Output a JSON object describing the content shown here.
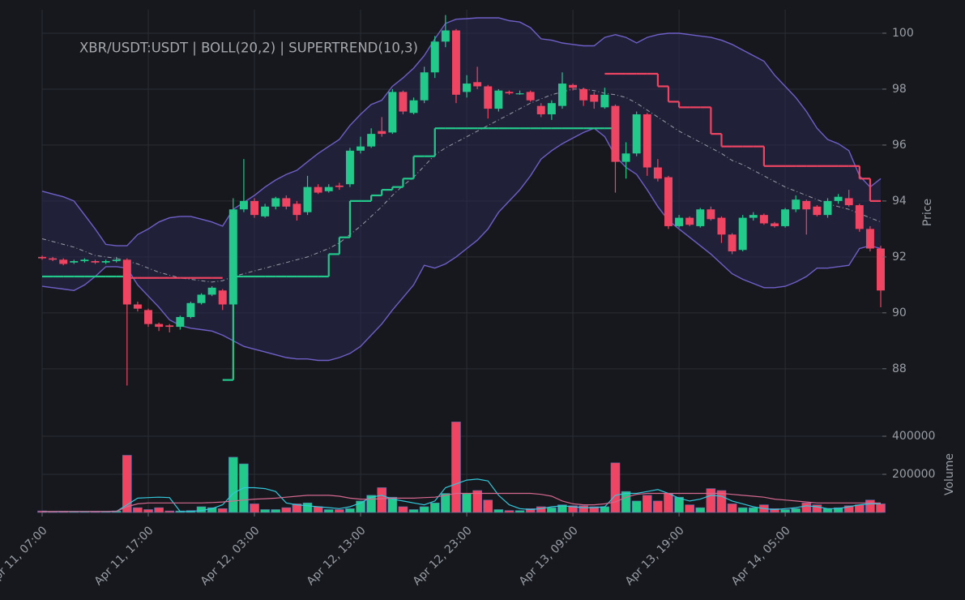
{
  "chart_data": {
    "type": "candlestick",
    "title": "XBR/USDT:USDT | BOLL(20,2) | SUPERTREND(10,3)",
    "ylabel": "Price",
    "ylim": [
      86.4,
      100.84
    ],
    "yticks": [
      88,
      90,
      92,
      94,
      96,
      98,
      100
    ],
    "xlim": [
      0,
      79
    ],
    "xticks": [
      {
        "value": 0,
        "label": "Apr 11, 07:00"
      },
      {
        "value": 10,
        "label": "Apr 11, 17:00"
      },
      {
        "value": 20,
        "label": "Apr 12, 03:00"
      },
      {
        "value": 30,
        "label": "Apr 12, 13:00"
      },
      {
        "value": 40,
        "label": "Apr 12, 23:00"
      },
      {
        "value": 50,
        "label": "Apr 13, 09:00"
      },
      {
        "value": 60,
        "label": "Apr 13, 19:00"
      },
      {
        "value": 70,
        "label": "Apr 14, 05:00"
      }
    ],
    "grid": true,
    "up_color": "#22c98b",
    "down_color": "#ef4562",
    "open": [
      92.0,
      91.95,
      91.9,
      91.8,
      91.85,
      91.85,
      91.8,
      91.85,
      91.9,
      90.3,
      90.1,
      89.6,
      89.55,
      89.5,
      89.85,
      90.35,
      90.65,
      90.8,
      90.3,
      93.7,
      94.0,
      93.45,
      93.8,
      94.1,
      93.9,
      93.6,
      94.5,
      94.35,
      94.55,
      94.6,
      95.8,
      95.95,
      96.5,
      96.45,
      97.9,
      97.15,
      97.6,
      98.6,
      99.7,
      100.1,
      97.9,
      98.25,
      98.1,
      97.3,
      97.9,
      97.85,
      97.9,
      97.4,
      97.1,
      97.4,
      98.15,
      98.0,
      97.8,
      97.35,
      97.4,
      95.4,
      95.7,
      97.1,
      95.2,
      94.85,
      93.1,
      93.4,
      93.1,
      93.7,
      93.4,
      92.8,
      92.25,
      93.4,
      93.5,
      93.2,
      93.1,
      93.7,
      94.0,
      93.8,
      93.5,
      94.0,
      94.1,
      93.85,
      93.0,
      92.3
    ],
    "high": [
      92.05,
      92.0,
      91.95,
      91.9,
      91.95,
      91.9,
      91.9,
      92.0,
      91.95,
      90.4,
      90.15,
      89.65,
      89.6,
      89.9,
      90.4,
      90.7,
      90.95,
      90.85,
      94.1,
      95.5,
      94.1,
      93.9,
      94.15,
      94.2,
      94.0,
      94.9,
      94.6,
      94.6,
      94.65,
      95.9,
      96.3,
      96.6,
      97.0,
      98.0,
      97.95,
      97.7,
      98.8,
      99.9,
      100.65,
      100.15,
      98.5,
      98.8,
      98.15,
      98.0,
      97.95,
      97.95,
      97.95,
      97.5,
      97.6,
      98.6,
      98.2,
      98.05,
      97.9,
      98.05,
      97.45,
      96.1,
      97.2,
      97.15,
      95.5,
      94.9,
      93.5,
      93.45,
      93.75,
      93.8,
      93.45,
      92.85,
      93.5,
      93.6,
      93.55,
      93.25,
      93.75,
      94.2,
      94.05,
      93.85,
      94.1,
      94.25,
      94.4,
      93.9,
      93.1,
      92.4
    ],
    "low": [
      91.9,
      91.85,
      91.7,
      91.75,
      91.8,
      91.75,
      91.75,
      91.8,
      87.4,
      90.05,
      89.5,
      89.35,
      89.3,
      89.4,
      89.8,
      90.3,
      90.6,
      90.1,
      90.3,
      93.6,
      93.4,
      93.4,
      93.7,
      93.7,
      93.3,
      93.5,
      94.25,
      94.3,
      94.4,
      94.5,
      95.7,
      95.9,
      96.3,
      96.4,
      97.1,
      97.1,
      97.5,
      98.4,
      99.5,
      97.5,
      97.7,
      98.0,
      96.95,
      97.2,
      97.8,
      97.8,
      97.55,
      97.0,
      96.9,
      97.3,
      97.95,
      97.4,
      97.3,
      97.3,
      94.3,
      94.8,
      95.6,
      94.9,
      94.7,
      93.0,
      93.05,
      93.1,
      93.05,
      93.3,
      92.5,
      92.1,
      92.2,
      93.3,
      93.15,
      93.05,
      93.05,
      93.6,
      92.8,
      93.45,
      93.4,
      93.9,
      93.8,
      92.9,
      92.2,
      90.2
    ],
    "close": [
      91.95,
      91.9,
      91.75,
      91.85,
      91.9,
      91.8,
      91.85,
      91.9,
      90.3,
      90.15,
      89.6,
      89.5,
      89.5,
      89.85,
      90.35,
      90.65,
      90.9,
      90.3,
      93.7,
      94.0,
      93.5,
      93.8,
      94.1,
      93.8,
      93.5,
      94.5,
      94.3,
      94.5,
      94.5,
      95.8,
      95.95,
      96.4,
      96.4,
      97.9,
      97.2,
      97.6,
      98.6,
      99.7,
      100.1,
      97.8,
      98.2,
      98.1,
      97.3,
      97.95,
      97.85,
      97.85,
      97.6,
      97.1,
      97.5,
      98.2,
      98.05,
      97.6,
      97.55,
      97.8,
      95.4,
      95.7,
      97.1,
      95.2,
      94.8,
      93.1,
      93.4,
      93.15,
      93.7,
      93.35,
      92.8,
      92.2,
      93.4,
      93.5,
      93.2,
      93.1,
      93.7,
      94.05,
      93.7,
      93.5,
      94.0,
      94.15,
      93.85,
      93.0,
      92.3,
      90.8
    ],
    "bollinger": {
      "line_color": "#6f5fc8",
      "fill": "#2a2850",
      "middle_color": "#9a9aa6",
      "upper": [
        94.35,
        94.25,
        94.15,
        94.0,
        93.5,
        93.0,
        92.45,
        92.4,
        92.4,
        92.8,
        93.0,
        93.25,
        93.4,
        93.45,
        93.45,
        93.35,
        93.25,
        93.1,
        93.7,
        93.95,
        94.2,
        94.5,
        94.75,
        94.95,
        95.1,
        95.4,
        95.7,
        95.95,
        96.2,
        96.7,
        97.1,
        97.45,
        97.6,
        98.1,
        98.4,
        98.75,
        99.2,
        99.8,
        100.35,
        100.5,
        100.52,
        100.55,
        100.55,
        100.55,
        100.45,
        100.4,
        100.2,
        99.8,
        99.75,
        99.65,
        99.6,
        99.55,
        99.55,
        99.85,
        99.95,
        99.85,
        99.65,
        99.85,
        99.95,
        100.0,
        100.0,
        99.95,
        99.9,
        99.85,
        99.75,
        99.6,
        99.4,
        99.2,
        99.0,
        98.5,
        98.1,
        97.7,
        97.2,
        96.6,
        96.2,
        96.05,
        95.8,
        94.9,
        94.5,
        94.8
      ],
      "middle": [
        92.65,
        92.55,
        92.45,
        92.35,
        92.2,
        92.05,
        92.0,
        91.95,
        91.85,
        91.75,
        91.6,
        91.45,
        91.35,
        91.25,
        91.2,
        91.15,
        91.1,
        91.15,
        91.3,
        91.4,
        91.5,
        91.6,
        91.7,
        91.8,
        91.9,
        92.0,
        92.15,
        92.3,
        92.5,
        92.8,
        93.1,
        93.45,
        93.8,
        94.2,
        94.55,
        94.85,
        95.25,
        95.65,
        95.9,
        96.1,
        96.3,
        96.5,
        96.7,
        96.9,
        97.1,
        97.3,
        97.5,
        97.65,
        97.8,
        97.9,
        98.0,
        98.0,
        97.95,
        97.85,
        97.8,
        97.7,
        97.5,
        97.25,
        97.0,
        96.75,
        96.5,
        96.3,
        96.1,
        95.9,
        95.7,
        95.45,
        95.3,
        95.1,
        94.9,
        94.7,
        94.5,
        94.35,
        94.2,
        94.05,
        93.9,
        93.8,
        93.7,
        93.55,
        93.4,
        93.25
      ],
      "lower": [
        90.95,
        90.9,
        90.85,
        90.8,
        91.0,
        91.3,
        91.65,
        91.65,
        91.6,
        91.0,
        90.6,
        90.2,
        89.75,
        89.55,
        89.45,
        89.4,
        89.35,
        89.2,
        89.0,
        88.8,
        88.7,
        88.6,
        88.5,
        88.4,
        88.35,
        88.35,
        88.3,
        88.3,
        88.4,
        88.55,
        88.8,
        89.2,
        89.6,
        90.1,
        90.55,
        91.0,
        91.7,
        91.6,
        91.75,
        92.0,
        92.3,
        92.6,
        93.0,
        93.6,
        94.0,
        94.4,
        94.9,
        95.5,
        95.8,
        96.05,
        96.25,
        96.45,
        96.6,
        96.3,
        95.6,
        95.2,
        94.95,
        94.4,
        93.8,
        93.3,
        93.0,
        92.7,
        92.4,
        92.1,
        91.75,
        91.4,
        91.2,
        91.05,
        90.9,
        90.9,
        90.95,
        91.1,
        91.3,
        91.6,
        91.6,
        91.65,
        91.7,
        92.3,
        92.4,
        92.3
      ]
    },
    "supertrend": {
      "up": {
        "color": "#22c98b",
        "values": [
          91.3,
          91.3,
          91.3,
          91.3,
          91.3,
          91.3,
          91.3,
          91.3,
          null,
          null,
          null,
          null,
          null,
          null,
          null,
          null,
          null,
          87.6,
          91.3,
          91.3,
          91.3,
          91.3,
          91.3,
          91.3,
          91.3,
          91.3,
          91.3,
          92.1,
          92.7,
          94.0,
          94.0,
          94.2,
          94.4,
          94.5,
          94.8,
          95.6,
          95.6,
          96.6,
          96.6,
          96.6,
          96.6,
          96.6,
          96.6,
          96.6,
          96.6,
          96.6,
          96.6,
          96.6,
          96.6,
          96.6,
          96.6,
          96.6,
          96.6,
          96.6,
          null,
          null,
          null,
          null,
          null,
          null,
          null,
          null,
          null,
          null,
          null,
          null,
          null,
          null,
          null,
          null,
          null,
          null,
          null,
          null,
          null,
          null,
          null,
          null,
          null,
          null
        ]
      },
      "down": {
        "color": "#ef4562",
        "values": [
          null,
          null,
          null,
          null,
          null,
          null,
          null,
          null,
          91.25,
          91.25,
          91.25,
          91.25,
          91.25,
          91.25,
          91.25,
          91.25,
          91.25,
          null,
          null,
          null,
          null,
          null,
          null,
          null,
          null,
          null,
          null,
          null,
          null,
          null,
          null,
          null,
          null,
          null,
          null,
          null,
          null,
          null,
          null,
          null,
          null,
          null,
          null,
          null,
          null,
          null,
          null,
          null,
          null,
          null,
          null,
          null,
          null,
          98.55,
          98.55,
          98.55,
          98.55,
          98.55,
          98.1,
          97.55,
          97.35,
          97.35,
          97.35,
          96.4,
          95.95,
          95.95,
          95.95,
          95.95,
          95.25,
          95.25,
          95.25,
          95.25,
          95.25,
          95.25,
          95.25,
          95.25,
          95.25,
          94.8,
          94.0,
          94.0
        ]
      }
    },
    "volume": {
      "ylabel": "Volume",
      "ylim": [
        0,
        498000
      ],
      "yticks": [
        200000,
        400000
      ],
      "values": [
        8000,
        5000,
        6000,
        5000,
        5000,
        6000,
        5000,
        8000,
        300000,
        25000,
        15000,
        25000,
        8000,
        8000,
        10000,
        30000,
        25000,
        20000,
        290000,
        255000,
        45000,
        15000,
        15000,
        25000,
        45000,
        50000,
        30000,
        15000,
        15000,
        20000,
        60000,
        90000,
        130000,
        80000,
        30000,
        15000,
        30000,
        50000,
        100000,
        475000,
        100000,
        115000,
        65000,
        15000,
        10000,
        10000,
        20000,
        30000,
        25000,
        40000,
        35000,
        35000,
        30000,
        30000,
        260000,
        110000,
        60000,
        90000,
        60000,
        100000,
        80000,
        40000,
        25000,
        125000,
        115000,
        45000,
        25000,
        25000,
        40000,
        20000,
        15000,
        20000,
        50000,
        40000,
        20000,
        25000,
        35000,
        40000,
        65000,
        45000
      ],
      "ma": [
        {
          "color": "#33c7da",
          "values": [
            5000,
            5000,
            5000,
            5000,
            5000,
            5000,
            5000,
            6000,
            40000,
            75000,
            78000,
            80000,
            78000,
            5000,
            5000,
            10000,
            20000,
            40000,
            100000,
            130000,
            130000,
            125000,
            110000,
            50000,
            40000,
            35000,
            30000,
            25000,
            20000,
            30000,
            50000,
            80000,
            90000,
            70000,
            60000,
            50000,
            40000,
            60000,
            130000,
            150000,
            170000,
            175000,
            165000,
            90000,
            40000,
            20000,
            15000,
            20000,
            30000,
            35000,
            30000,
            25000,
            25000,
            30000,
            90000,
            100000,
            100000,
            110000,
            120000,
            100000,
            75000,
            60000,
            70000,
            90000,
            85000,
            60000,
            45000,
            30000,
            20000,
            15000,
            20000,
            25000,
            35000,
            30000,
            20000,
            20000,
            30000,
            40000,
            45000,
            45000
          ]
        },
        {
          "color": "#d4688e",
          "values": [
            5000,
            5000,
            5000,
            5000,
            5000,
            5000,
            5000,
            6000,
            30000,
            45000,
            50000,
            50000,
            50000,
            50000,
            50000,
            50000,
            52000,
            55000,
            60000,
            65000,
            70000,
            72000,
            75000,
            80000,
            85000,
            90000,
            90000,
            90000,
            85000,
            75000,
            70000,
            70000,
            72000,
            75000,
            75000,
            75000,
            78000,
            80000,
            90000,
            100000,
            100000,
            100000,
            100000,
            100000,
            100000,
            100000,
            100000,
            95000,
            85000,
            60000,
            45000,
            40000,
            40000,
            45000,
            55000,
            80000,
            95000,
            100000,
            100000,
            100000,
            100000,
            100000,
            100000,
            100000,
            100000,
            95000,
            90000,
            85000,
            80000,
            70000,
            65000,
            60000,
            55000,
            50000,
            50000,
            50000,
            50000,
            50000,
            50000,
            50000
          ]
        }
      ]
    }
  }
}
